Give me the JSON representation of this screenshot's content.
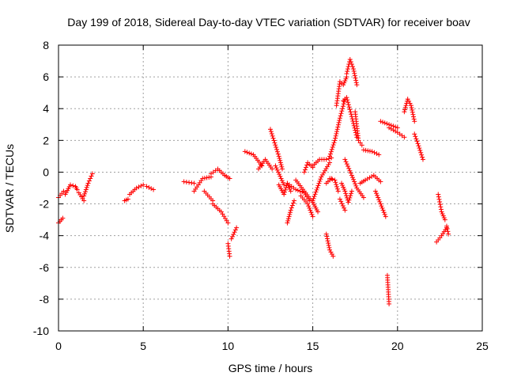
{
  "chart_data": {
    "type": "scatter",
    "title": "Day 199 of 2018, Sidereal Day-to-day VTEC variation (SDTVAR) for receiver boav",
    "xlabel": "GPS time / hours",
    "ylabel": "SDTVAR / TECUs",
    "xlim": [
      0,
      25
    ],
    "ylim": [
      -10,
      8
    ],
    "xticks": [
      0,
      5,
      10,
      15,
      20,
      25
    ],
    "yticks": [
      -10,
      -8,
      -6,
      -4,
      -2,
      0,
      2,
      4,
      6,
      8
    ],
    "grid": true,
    "marker": "+",
    "colors": {
      "points": "#ff0000",
      "grid": "#a0a0a0",
      "axes": "#000000"
    },
    "segments": [
      {
        "x": [
          0.0,
          0.3
        ],
        "y": [
          -1.6,
          -1.2
        ]
      },
      {
        "x": [
          0.0,
          0.25
        ],
        "y": [
          -3.2,
          -2.9
        ]
      },
      {
        "x": [
          0.4,
          0.7,
          1.0,
          1.1
        ],
        "y": [
          -1.4,
          -0.8,
          -0.9,
          -1.1
        ]
      },
      {
        "x": [
          1.2,
          1.5
        ],
        "y": [
          -1.3,
          -1.8
        ]
      },
      {
        "x": [
          1.5,
          1.75,
          2.0
        ],
        "y": [
          -1.5,
          -0.7,
          -0.1
        ]
      },
      {
        "x": [
          3.9,
          4.1
        ],
        "y": [
          -1.8,
          -1.7
        ]
      },
      {
        "x": [
          4.2,
          4.6,
          5.0
        ],
        "y": [
          -1.4,
          -1.0,
          -0.8
        ]
      },
      {
        "x": [
          5.2,
          5.6
        ],
        "y": [
          -0.9,
          -1.1
        ]
      },
      {
        "x": [
          7.4,
          8.0
        ],
        "y": [
          -0.6,
          -0.7
        ]
      },
      {
        "x": [
          8.0,
          8.5,
          9.0
        ],
        "y": [
          -1.2,
          -0.4,
          -0.3
        ]
      },
      {
        "x": [
          9.0,
          9.4,
          9.8,
          10.1
        ],
        "y": [
          -0.1,
          0.2,
          -0.2,
          -0.4
        ]
      },
      {
        "x": [
          8.6,
          9.1
        ],
        "y": [
          -1.2,
          -1.8
        ]
      },
      {
        "x": [
          9.1,
          9.6,
          10.0
        ],
        "y": [
          -2.0,
          -2.5,
          -3.2
        ]
      },
      {
        "x": [
          10.0,
          10.1
        ],
        "y": [
          -4.5,
          -5.3
        ]
      },
      {
        "x": [
          10.2,
          10.5
        ],
        "y": [
          -4.2,
          -3.5
        ]
      },
      {
        "x": [
          11.0,
          11.5,
          12.0
        ],
        "y": [
          1.3,
          1.1,
          0.4
        ]
      },
      {
        "x": [
          11.8,
          12.2,
          12.6
        ],
        "y": [
          0.2,
          0.8,
          0.2
        ]
      },
      {
        "x": [
          12.5,
          13.0,
          13.2
        ],
        "y": [
          2.7,
          1.0,
          0.2
        ]
      },
      {
        "x": [
          12.8,
          13.3
        ],
        "y": [
          0.4,
          -0.8
        ]
      },
      {
        "x": [
          13.0,
          13.3,
          13.5,
          13.7
        ],
        "y": [
          -0.8,
          -1.4,
          -0.7,
          -1.2
        ]
      },
      {
        "x": [
          13.5,
          14.0,
          14.5,
          14.8
        ],
        "y": [
          -0.7,
          -1.1,
          -1.3,
          -1.8
        ]
      },
      {
        "x": [
          13.5,
          13.7,
          13.9
        ],
        "y": [
          -3.2,
          -2.4,
          -1.8
        ]
      },
      {
        "x": [
          14.0,
          14.5,
          15.0,
          15.3
        ],
        "y": [
          -0.5,
          -1.2,
          -1.9,
          -2.5
        ]
      },
      {
        "x": [
          14.3,
          14.7,
          15.0
        ],
        "y": [
          -1.5,
          -2.0,
          -2.8
        ]
      },
      {
        "x": [
          14.5,
          14.7,
          15.0
        ],
        "y": [
          0.0,
          0.6,
          0.3
        ]
      },
      {
        "x": [
          15.0,
          15.5,
          16.0
        ],
        "y": [
          -1.8,
          -0.3,
          0.6
        ]
      },
      {
        "x": [
          15.0,
          15.4,
          15.8,
          16.1
        ],
        "y": [
          0.4,
          0.8,
          0.8,
          0.9
        ]
      },
      {
        "x": [
          15.8,
          16.1
        ],
        "y": [
          -0.7,
          -0.4
        ]
      },
      {
        "x": [
          16.0,
          16.3,
          16.5
        ],
        "y": [
          -0.4,
          -0.5,
          -1.2
        ]
      },
      {
        "x": [
          15.8,
          16.0,
          16.2
        ],
        "y": [
          -3.9,
          -4.9,
          -5.3
        ]
      },
      {
        "x": [
          16.0,
          16.3,
          16.6,
          16.9
        ],
        "y": [
          1.0,
          2.0,
          3.4,
          4.6
        ]
      },
      {
        "x": [
          16.4,
          16.6,
          16.8,
          17.0
        ],
        "y": [
          4.2,
          5.7,
          5.5,
          6.0
        ]
      },
      {
        "x": [
          17.0,
          17.2,
          17.4,
          17.6
        ],
        "y": [
          6.2,
          7.1,
          6.5,
          5.5
        ]
      },
      {
        "x": [
          16.8,
          17.0,
          17.3,
          17.6
        ],
        "y": [
          4.5,
          4.7,
          3.5,
          2.2
        ]
      },
      {
        "x": [
          17.5,
          17.7,
          17.9
        ],
        "y": [
          3.8,
          2.0,
          1.7
        ]
      },
      {
        "x": [
          16.7,
          16.9,
          17.1,
          17.3
        ],
        "y": [
          -0.7,
          -1.2,
          -1.9,
          -1.2
        ]
      },
      {
        "x": [
          16.6,
          16.9
        ],
        "y": [
          -1.7,
          -2.4
        ]
      },
      {
        "x": [
          16.9,
          17.3,
          17.6,
          18.0
        ],
        "y": [
          0.8,
          -0.2,
          -1.0,
          -1.6
        ]
      },
      {
        "x": [
          17.8,
          18.1,
          18.6,
          19.0
        ],
        "y": [
          -0.7,
          -0.5,
          -0.2,
          -0.6
        ]
      },
      {
        "x": [
          18.0,
          18.5,
          18.9
        ],
        "y": [
          1.4,
          1.3,
          1.1
        ]
      },
      {
        "x": [
          18.7,
          19.0,
          19.3
        ],
        "y": [
          -1.2,
          -2.0,
          -2.8
        ]
      },
      {
        "x": [
          19.0,
          19.5,
          20.0
        ],
        "y": [
          3.2,
          3.0,
          2.8
        ]
      },
      {
        "x": [
          19.5,
          20.0,
          20.4
        ],
        "y": [
          2.8,
          2.5,
          2.2
        ]
      },
      {
        "x": [
          19.4,
          19.5
        ],
        "y": [
          -6.5,
          -8.3
        ]
      },
      {
        "x": [
          20.4,
          20.6,
          20.8,
          21.0
        ],
        "y": [
          3.8,
          4.6,
          4.2,
          3.2
        ]
      },
      {
        "x": [
          21.0,
          21.2,
          21.5
        ],
        "y": [
          2.4,
          1.8,
          0.8
        ]
      },
      {
        "x": [
          22.4,
          22.6,
          22.8
        ],
        "y": [
          -1.4,
          -2.5,
          -3.0
        ]
      },
      {
        "x": [
          22.9,
          23.0
        ],
        "y": [
          -3.4,
          -3.9
        ]
      },
      {
        "x": [
          22.3,
          22.6,
          22.9
        ],
        "y": [
          -4.4,
          -4.0,
          -3.5
        ]
      }
    ]
  }
}
